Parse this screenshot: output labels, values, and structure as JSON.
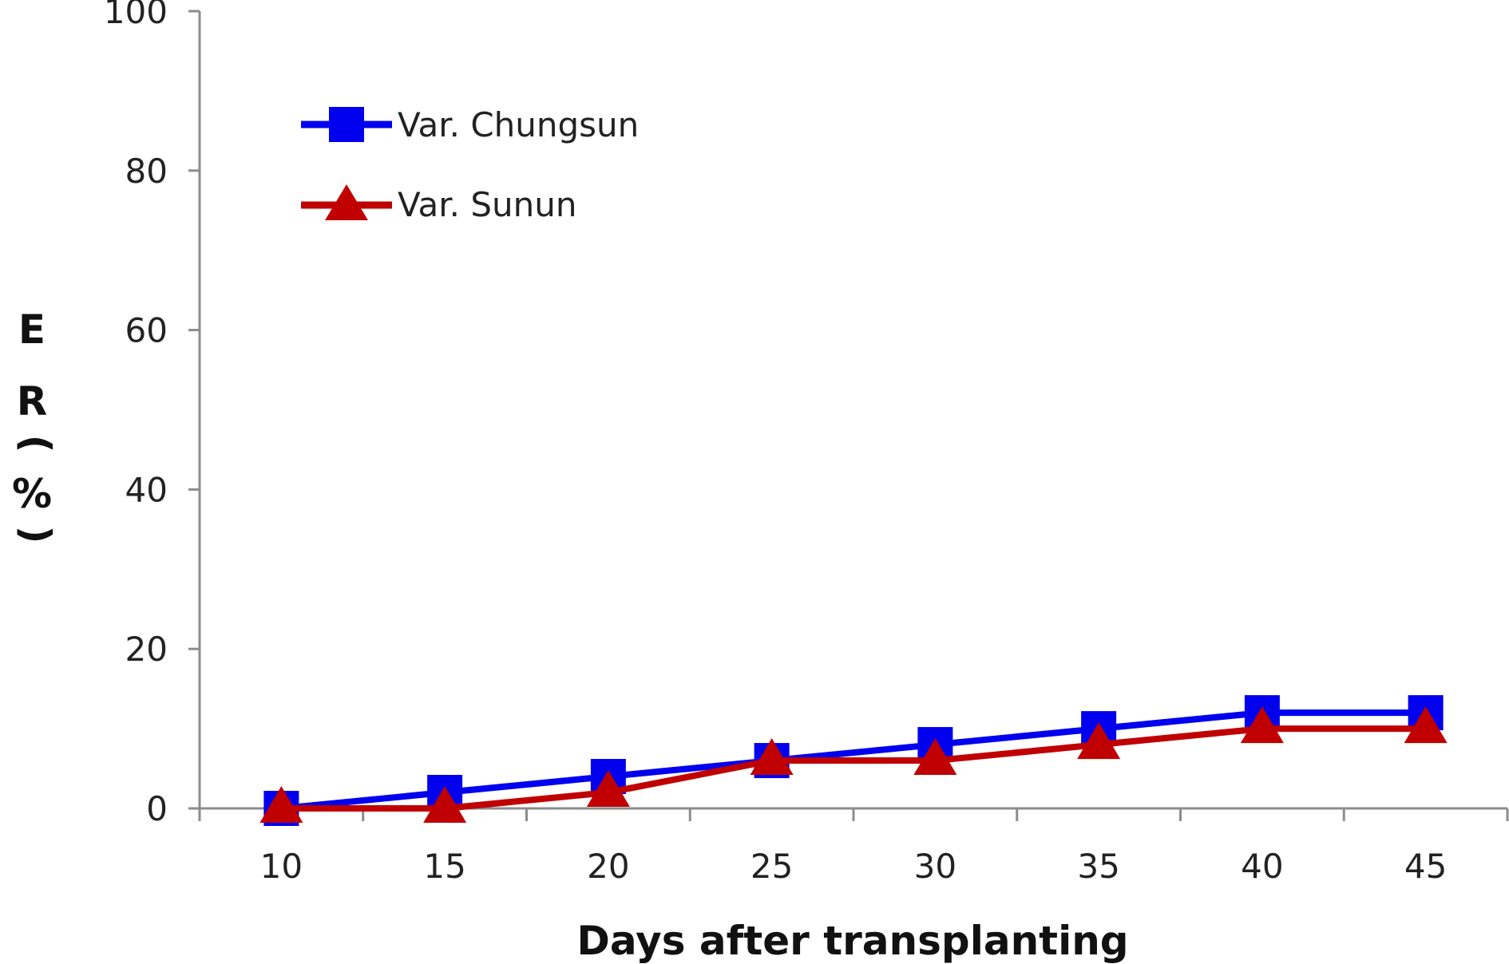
{
  "chart_data": {
    "type": "line",
    "title": "",
    "xlabel": "Days after transplanting",
    "ylabel_chars": [
      "E",
      "R",
      "(",
      "%",
      ")"
    ],
    "ylabel": "ER (%)",
    "categories": [
      "10",
      "15",
      "20",
      "25",
      "30",
      "35",
      "40",
      "45"
    ],
    "ylim": [
      0,
      100
    ],
    "yticks": [
      "0",
      "20",
      "40",
      "60",
      "80",
      "100"
    ],
    "ytick_values": [
      0,
      20,
      40,
      60,
      80,
      100
    ],
    "legend_position": "top-left",
    "series": [
      {
        "name": "Var. Chungsun",
        "color": "#0000ee",
        "marker": "square",
        "values": [
          0,
          2,
          4,
          6,
          8,
          10,
          12,
          12
        ]
      },
      {
        "name": "Var. Sunun",
        "color": "#c00000",
        "marker": "triangle",
        "values": [
          0,
          0,
          2,
          6,
          6,
          8,
          10,
          10
        ]
      }
    ]
  }
}
